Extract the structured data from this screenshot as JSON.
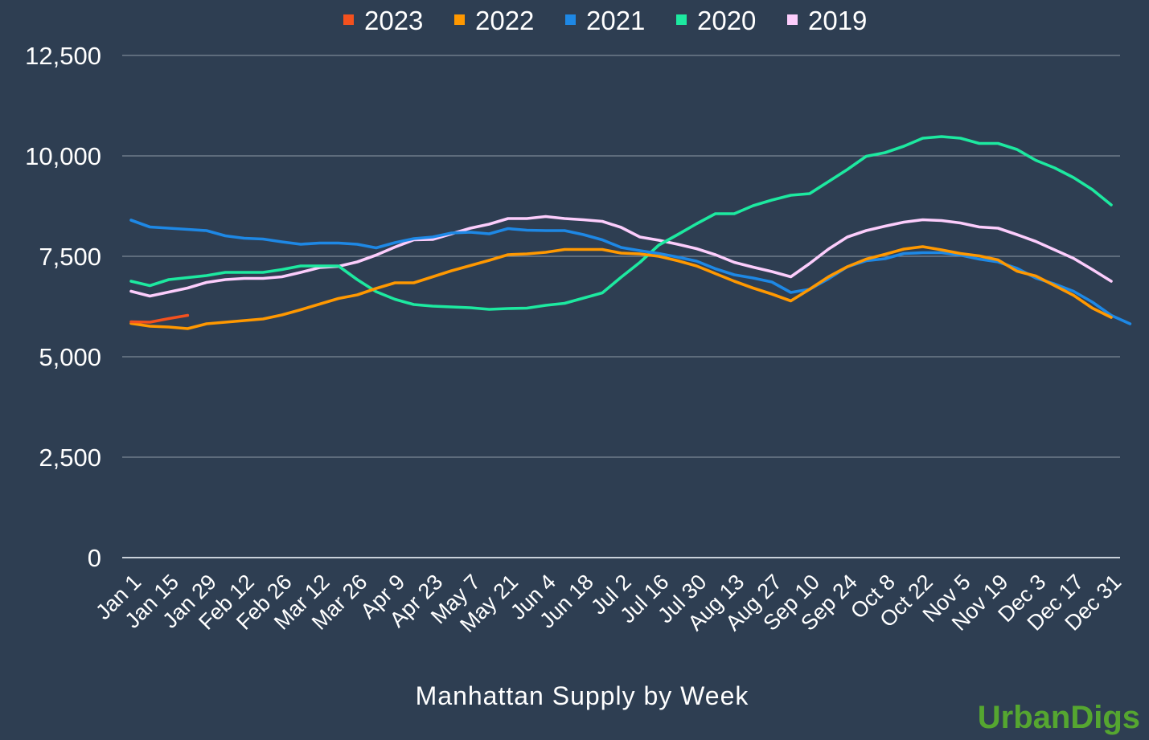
{
  "chart_data": {
    "type": "line",
    "title": "",
    "xlabel": "Manhattan Supply by Week",
    "ylabel": "",
    "ylim": [
      0,
      12500
    ],
    "yticks": [
      "0",
      "2,500",
      "5,000",
      "7,500",
      "10,000",
      "12,500"
    ],
    "ytick_values": [
      0,
      2500,
      5000,
      7500,
      10000,
      12500
    ],
    "grid": true,
    "legend_position": "top-center",
    "x_tick_labels": [
      "Jan 1",
      "Jan 15",
      "Jan 29",
      "Feb 12",
      "Feb 26",
      "Mar 12",
      "Mar 26",
      "Apr 9",
      "Apr 23",
      "May 7",
      "May 21",
      "Jun 4",
      "Jun 18",
      "Jul 2",
      "Jul 16",
      "Jul 30",
      "Aug 13",
      "Aug 27",
      "Sep 10",
      "Sep 24",
      "Oct 8",
      "Oct 22",
      "Nov 5",
      "Nov 19",
      "Dec 3",
      "Dec 17",
      "Dec 31"
    ],
    "series": [
      {
        "name": "2023",
        "color": "#f4511e",
        "values": [
          5870,
          5860,
          5950,
          6030
        ]
      },
      {
        "name": "2022",
        "color": "#ff9800",
        "values": [
          5830,
          5760,
          5740,
          5700,
          5820,
          5860,
          5900,
          5940,
          6040,
          6170,
          6310,
          6450,
          6540,
          6700,
          6840,
          6840,
          6990,
          7140,
          7270,
          7400,
          7540,
          7560,
          7600,
          7670,
          7670,
          7670,
          7580,
          7560,
          7500,
          7390,
          7260,
          7070,
          6880,
          6710,
          6560,
          6390,
          6680,
          6990,
          7240,
          7430,
          7550,
          7680,
          7740,
          7660,
          7570,
          7510,
          7410,
          7130,
          7010,
          6770,
          6530,
          6210,
          5980
        ]
      },
      {
        "name": "2021",
        "color": "#1e88e5",
        "values": [
          8400,
          8230,
          8200,
          8170,
          8140,
          8010,
          7950,
          7930,
          7860,
          7800,
          7830,
          7830,
          7800,
          7710,
          7840,
          7940,
          7980,
          8080,
          8100,
          8060,
          8190,
          8150,
          8140,
          8140,
          8040,
          7910,
          7720,
          7640,
          7570,
          7480,
          7380,
          7190,
          7040,
          6960,
          6860,
          6600,
          6680,
          6940,
          7240,
          7390,
          7440,
          7570,
          7590,
          7590,
          7530,
          7430,
          7360,
          7200,
          6960,
          6810,
          6630,
          6360,
          6030,
          5820
        ]
      },
      {
        "name": "2020",
        "color": "#1de9a0",
        "values": [
          6880,
          6770,
          6920,
          6970,
          7020,
          7100,
          7100,
          7100,
          7170,
          7260,
          7260,
          7260,
          6920,
          6620,
          6430,
          6300,
          6260,
          6240,
          6220,
          6180,
          6200,
          6210,
          6280,
          6330,
          6460,
          6590,
          6980,
          7350,
          7780,
          8040,
          8310,
          8560,
          8560,
          8760,
          8900,
          9020,
          9060,
          9360,
          9660,
          9990,
          10080,
          10240,
          10440,
          10480,
          10440,
          10310,
          10310,
          10160,
          9890,
          9700,
          9460,
          9160,
          8780
        ]
      },
      {
        "name": "2019",
        "color": "#fccdfc",
        "values": [
          6630,
          6510,
          6610,
          6710,
          6850,
          6920,
          6950,
          6950,
          6990,
          7100,
          7220,
          7250,
          7360,
          7530,
          7730,
          7910,
          7920,
          8060,
          8200,
          8300,
          8440,
          8440,
          8490,
          8440,
          8410,
          8370,
          8220,
          7980,
          7900,
          7800,
          7690,
          7540,
          7350,
          7230,
          7120,
          6990,
          7320,
          7680,
          7980,
          8140,
          8250,
          8350,
          8410,
          8390,
          8330,
          8230,
          8200,
          8040,
          7870,
          7660,
          7450,
          7170,
          6880
        ]
      }
    ]
  },
  "branding": {
    "logo_text": "UrbanDigs"
  }
}
